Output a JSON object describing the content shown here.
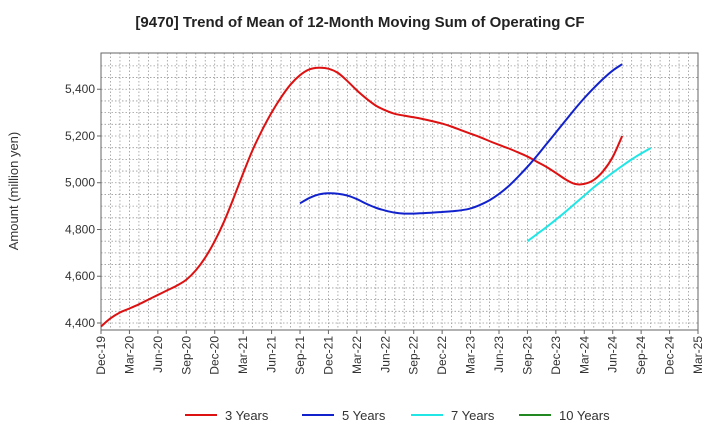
{
  "chart_data": {
    "type": "line",
    "title": "[9470]  Trend of Mean of 12-Month Moving Sum of Operating CF",
    "xlabel": "",
    "ylabel": "Amount (million yen)",
    "ylim": [
      4370,
      5555
    ],
    "yticks": [
      4400,
      4600,
      4800,
      5000,
      5200,
      5400
    ],
    "ytick_labels": [
      "4,400",
      "4,600",
      "4,800",
      "5,000",
      "5,200",
      "5,400"
    ],
    "xticks": [
      "Dec-19",
      "Mar-20",
      "Jun-20",
      "Sep-20",
      "Dec-20",
      "Mar-21",
      "Jun-21",
      "Sep-21",
      "Dec-21",
      "Mar-22",
      "Jun-22",
      "Sep-22",
      "Dec-22",
      "Mar-23",
      "Jun-23",
      "Sep-23",
      "Dec-23",
      "Mar-24",
      "Jun-24",
      "Sep-24",
      "Dec-24",
      "Mar-25"
    ],
    "grid": true,
    "legend_position": "bottom",
    "series": [
      {
        "name": "3 Years",
        "color": "#dd1111",
        "start_month": 0,
        "values": [
          4385,
          4420,
          4445,
          4462,
          4480,
          4500,
          4520,
          4540,
          4560,
          4585,
          4625,
          4680,
          4750,
          4835,
          4935,
          5040,
          5140,
          5225,
          5300,
          5365,
          5420,
          5460,
          5485,
          5492,
          5488,
          5470,
          5435,
          5395,
          5360,
          5330,
          5310,
          5295,
          5287,
          5280,
          5272,
          5263,
          5253,
          5240,
          5225,
          5210,
          5195,
          5178,
          5162,
          5147,
          5130,
          5112,
          5090,
          5068,
          5042,
          5015,
          4995,
          4995,
          5012,
          5050,
          5110,
          5200
        ]
      },
      {
        "name": "5 Years",
        "color": "#1122cc",
        "start_month": 21,
        "values": [
          4912,
          4935,
          4950,
          4955,
          4953,
          4945,
          4930,
          4910,
          4893,
          4881,
          4872,
          4868,
          4868,
          4870,
          4872,
          4875,
          4878,
          4882,
          4890,
          4905,
          4925,
          4952,
          4985,
          5025,
          5068,
          5115,
          5165,
          5215,
          5265,
          5315,
          5362,
          5405,
          5445,
          5480,
          5507
        ]
      },
      {
        "name": "7 Years",
        "color": "#22e5e5",
        "start_month": 45,
        "values": [
          4750,
          4780,
          4810,
          4842,
          4875,
          4910,
          4945,
          4980,
          5012,
          5043,
          5072,
          5100,
          5125,
          5148
        ]
      },
      {
        "name": "10 Years",
        "color": "#228822",
        "start_month": 0,
        "values": []
      }
    ]
  }
}
